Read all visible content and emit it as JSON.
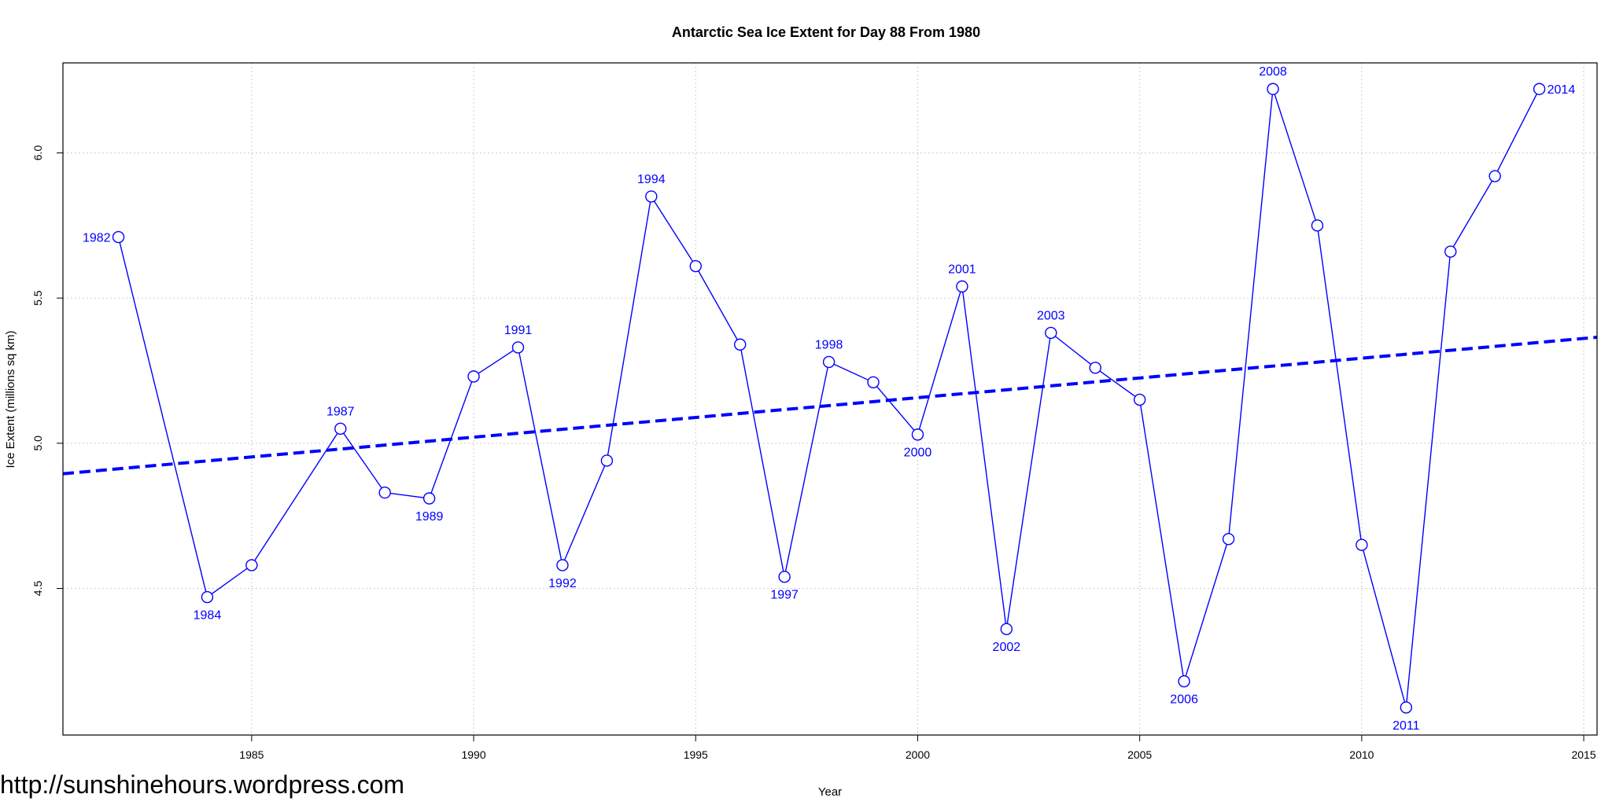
{
  "chart_data": {
    "type": "line",
    "title": "Antarctic Sea Ice Extent for Day 88 From 1980",
    "xlabel": "Year",
    "ylabel": "Ice Extent (millions sq km)",
    "xlim": [
      1980.75,
      2015.3
    ],
    "ylim": [
      3.995,
      6.31
    ],
    "x_ticks": [
      1985,
      1990,
      1995,
      2000,
      2005,
      2010,
      2015
    ],
    "y_ticks": [
      4.5,
      5.0,
      5.5,
      6.0
    ],
    "y_tick_labels": [
      "4.5",
      "5.0",
      "5.5",
      "6.0"
    ],
    "grid": true,
    "series": [
      {
        "x": [
          1982,
          1984,
          1985,
          1987,
          1988,
          1989,
          1990,
          1991,
          1992,
          1993,
          1994,
          1995,
          1996,
          1997,
          1998,
          1999,
          2000,
          2001,
          2002,
          2003,
          2004,
          2005,
          2006,
          2007,
          2008,
          2009,
          2010,
          2011,
          2012,
          2013,
          2014
        ],
        "y": [
          5.71,
          4.47,
          4.58,
          5.05,
          4.83,
          4.81,
          5.23,
          5.33,
          4.58,
          4.94,
          5.85,
          5.61,
          5.34,
          4.54,
          5.28,
          5.21,
          5.03,
          5.54,
          4.36,
          5.38,
          5.26,
          5.15,
          4.18,
          4.67,
          6.22,
          5.75,
          4.65,
          4.09,
          5.66,
          5.92,
          6.22
        ],
        "color": "#0000ff",
        "marker": "open-circle"
      }
    ],
    "trend": {
      "type": "linear",
      "color": "#0000ff",
      "style": "dashed",
      "x": [
        1980.75,
        2015.3
      ],
      "y": [
        4.895,
        5.365
      ]
    },
    "annotations": [
      {
        "label": "1982",
        "x": 1982,
        "y": 5.71,
        "position": "left"
      },
      {
        "label": "1984",
        "x": 1984,
        "y": 4.47,
        "position": "below"
      },
      {
        "label": "1987",
        "x": 1987,
        "y": 5.05,
        "position": "above"
      },
      {
        "label": "1989",
        "x": 1989,
        "y": 4.81,
        "position": "below"
      },
      {
        "label": "1991",
        "x": 1991,
        "y": 5.33,
        "position": "above"
      },
      {
        "label": "1992",
        "x": 1992,
        "y": 4.58,
        "position": "below"
      },
      {
        "label": "1994",
        "x": 1994,
        "y": 5.85,
        "position": "above"
      },
      {
        "label": "1997",
        "x": 1997,
        "y": 4.54,
        "position": "below"
      },
      {
        "label": "1998",
        "x": 1998,
        "y": 5.28,
        "position": "above"
      },
      {
        "label": "2000",
        "x": 2000,
        "y": 5.03,
        "position": "below"
      },
      {
        "label": "2001",
        "x": 2001,
        "y": 5.54,
        "position": "above"
      },
      {
        "label": "2002",
        "x": 2002,
        "y": 4.36,
        "position": "below"
      },
      {
        "label": "2003",
        "x": 2003,
        "y": 5.38,
        "position": "above"
      },
      {
        "label": "2006",
        "x": 2006,
        "y": 4.18,
        "position": "below"
      },
      {
        "label": "2008",
        "x": 2008,
        "y": 6.22,
        "position": "above"
      },
      {
        "label": "2011",
        "x": 2011,
        "y": 4.09,
        "position": "below"
      },
      {
        "label": "2014",
        "x": 2014,
        "y": 6.22,
        "position": "right"
      }
    ]
  },
  "watermark": "http://sunshinehours.wordpress.com"
}
